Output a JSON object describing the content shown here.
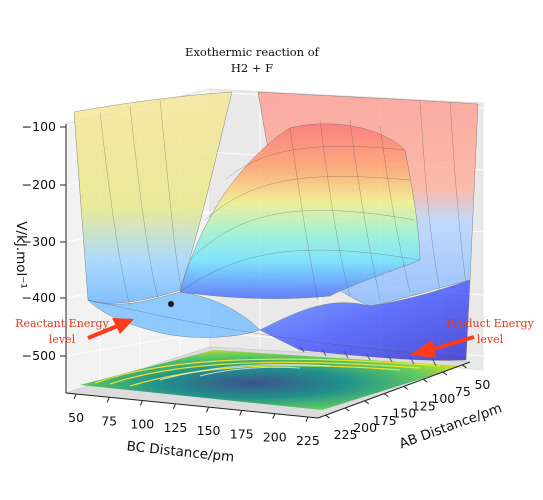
{
  "chart_data": {
    "type": "surface3d",
    "title": [
      "Exothermic reaction of",
      "H2 + F"
    ],
    "zlabel": "V/kJ.mol⁻¹",
    "xlabel": "BC Distance/pm",
    "ylabel": "AB Distance/pm",
    "z_ticks": [
      "−100",
      "−200",
      "−300",
      "−400",
      "−500"
    ],
    "bc_ticks": [
      "50",
      "75",
      "100",
      "125",
      "150",
      "175",
      "200",
      "225"
    ],
    "ab_ticks": [
      "50",
      "75",
      "100",
      "125",
      "150",
      "175",
      "200",
      "225"
    ],
    "zlim": [
      -560,
      -80
    ],
    "reactant_level": -420,
    "product_level": -560,
    "surface_colormap": [
      "#2b2bd6",
      "#3f78ff",
      "#46c8ff",
      "#7bf3d4",
      "#c7f59a",
      "#f5e27a",
      "#ffb067",
      "#ff7a6b",
      "#ff6161"
    ],
    "contour_colormap": [
      "#440154",
      "#3b528b",
      "#21918c",
      "#5ec962",
      "#fde725"
    ],
    "annotations": [
      {
        "text": [
          "Reactant Energy",
          "level"
        ],
        "color": "#e03a1e"
      },
      {
        "text": [
          "Product Energy",
          "level"
        ],
        "color": "#e03a1e"
      }
    ],
    "marker": {
      "label": "",
      "z": -420
    }
  }
}
